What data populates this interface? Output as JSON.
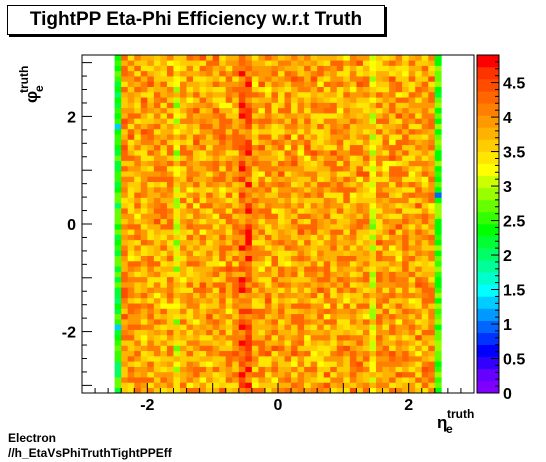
{
  "title": "TightPP Eta-Phi Efficiency w.r.t Truth",
  "footer": {
    "line1": "Electron",
    "line2": "//h_EtaVsPhiTruthTightPPEff"
  },
  "chart_data": {
    "type": "heatmap",
    "title": "TightPP Eta-Phi Efficiency w.r.t Truth",
    "xlabel": {
      "main": "η",
      "sub": "e",
      "sup": "truth"
    },
    "ylabel": {
      "main": "φ",
      "sub": "e",
      "sup": "truth"
    },
    "xlim": [
      -3.0,
      3.0
    ],
    "ylim": [
      -3.1416,
      3.1416
    ],
    "zlim": [
      0,
      4.9
    ],
    "x_ticks": [
      "-2",
      "0",
      "2"
    ],
    "x_tick_values": [
      -2,
      0,
      2
    ],
    "y_ticks": [
      "-2",
      "0",
      "2"
    ],
    "y_tick_values": [
      -2,
      0,
      2
    ],
    "z_ticks": [
      "0",
      "0.5",
      "1",
      "1.5",
      "2",
      "2.5",
      "3",
      "3.5",
      "4",
      "4.5"
    ],
    "z_tick_values": [
      0,
      0.5,
      1,
      1.5,
      2,
      2.5,
      3,
      3.5,
      4,
      4.5
    ],
    "n_x_bins": 50,
    "n_y_bins": 64,
    "filled_x_range": [
      -2.5,
      2.5
    ],
    "palette": [
      "#7f00ff",
      "#6600ff",
      "#3300ff",
      "#0000ff",
      "#0033ff",
      "#0066ff",
      "#0099ff",
      "#00ccff",
      "#00ffff",
      "#00ffcc",
      "#00ff99",
      "#00ff66",
      "#00ff33",
      "#00ff00",
      "#33ff00",
      "#66ff00",
      "#99ff00",
      "#ccff00",
      "#ffff00",
      "#ffe600",
      "#ffcc00",
      "#ffb300",
      "#ff9900",
      "#ff8000",
      "#ff6600",
      "#ff4d00",
      "#ff3300",
      "#ff0000"
    ],
    "column_profile": [
      {
        "x": -2.45,
        "value": 2.4
      },
      {
        "x": -2.35,
        "value": 4.0
      },
      {
        "x": -1.55,
        "value": 3.2
      },
      {
        "x": -0.55,
        "value": 4.3
      },
      {
        "x": -0.45,
        "value": 4.4
      },
      {
        "x": 1.45,
        "value": 3.3
      },
      {
        "x": 2.45,
        "value": 2.6
      }
    ]
  }
}
